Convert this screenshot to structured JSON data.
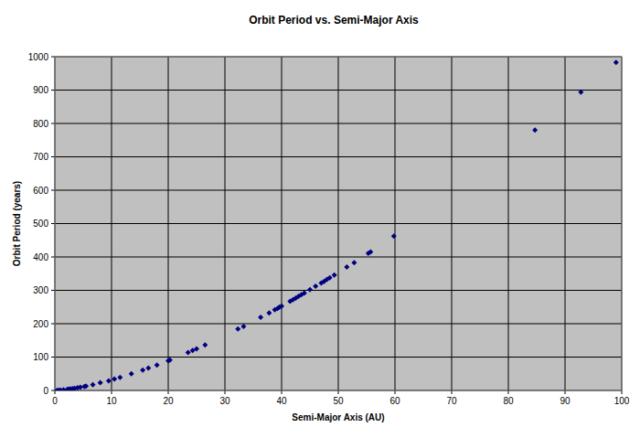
{
  "chart_data": {
    "type": "scatter",
    "title": "Orbit Period vs. Semi-Major Axis",
    "x_label": "Semi-Major Axis (AU)",
    "y_label": "Orbit Period (years)",
    "x": [
      0.39,
      0.72,
      1,
      1.52,
      2.2,
      2.5,
      2.8,
      3.2,
      3.5,
      4,
      4.5,
      5.2,
      5.5,
      6.7,
      8,
      9.5,
      10.5,
      11.5,
      13.5,
      15.5,
      16.5,
      18,
      20,
      20.3,
      23.5,
      24.3,
      25,
      26.5,
      32.3,
      33.3,
      36.3,
      37.8,
      38.8,
      39.3,
      39.6,
      40,
      41.5,
      42,
      42.5,
      43,
      43.5,
      44,
      45,
      46,
      47,
      47.5,
      48,
      48.5,
      49.3,
      51.5,
      52.8,
      55.3,
      55.7,
      59.8,
      84.7,
      92.8,
      99
    ],
    "values": [
      0.24,
      0.62,
      1,
      1.88,
      3.3,
      4,
      4.7,
      5.7,
      6.5,
      8,
      9.5,
      11.9,
      12.9,
      17,
      23,
      29,
      34,
      39,
      50,
      61,
      67,
      76,
      89,
      91,
      114,
      120,
      125,
      136,
      184,
      192,
      219,
      232,
      242,
      246,
      249,
      253,
      267,
      272,
      277,
      282,
      287,
      292,
      302,
      312,
      322,
      327,
      333,
      338,
      346,
      370,
      383,
      411,
      415,
      462,
      780,
      894,
      983
    ],
    "color": "#000080",
    "marker": "diamond",
    "xlim": [
      0,
      100
    ],
    "xticks": [
      0,
      10,
      20,
      30,
      40,
      50,
      60,
      70,
      80,
      90,
      100
    ],
    "ylim": [
      0,
      1000
    ],
    "yticks": [
      0,
      100,
      200,
      300,
      400,
      500,
      600,
      700,
      800,
      900,
      1000
    ],
    "grid": true
  }
}
